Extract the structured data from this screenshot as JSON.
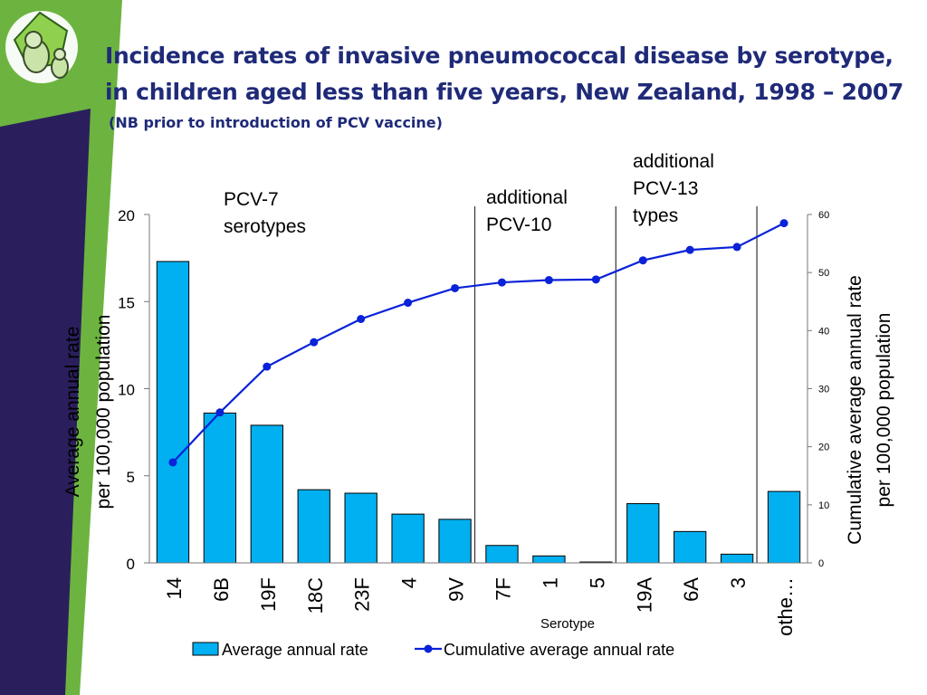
{
  "slide": {
    "title": "Incidence rates of invasive pneumococcal disease by serotype, in children aged less than five years, New Zealand, 1998 – 2007",
    "subtitle": "(NB prior to introduction of PCV vaccine)",
    "colors": {
      "title": "#1f2a78",
      "sidebar": "#2a1f5c",
      "accent": "#6cb43f"
    }
  },
  "annotations": {
    "pcv7": "PCV-7\nserotypes",
    "pcv10": "additional\nPCV-10",
    "pcv13": "additional\nPCV-13\ntypes"
  },
  "chart_data": {
    "type": "bar",
    "categories": [
      "14",
      "6B",
      "19F",
      "18C",
      "23F",
      "4",
      "9V",
      "7F",
      "1",
      "5",
      "19A",
      "6A",
      "3",
      "othe…"
    ],
    "series": [
      {
        "name": "Average annual rate",
        "type": "bar",
        "axis": "left",
        "color": "#00b0f0",
        "values": [
          17.3,
          8.6,
          7.9,
          4.2,
          4.0,
          2.8,
          2.5,
          1.0,
          0.4,
          0.05,
          3.4,
          1.8,
          0.5,
          4.1
        ]
      },
      {
        "name": "Cumulative average annual rate",
        "type": "line",
        "axis": "right",
        "color": "#0a22d8",
        "values": [
          17.3,
          25.9,
          33.8,
          38.0,
          42.0,
          44.8,
          47.3,
          48.3,
          48.7,
          48.8,
          52.1,
          53.9,
          54.4,
          58.5
        ]
      }
    ],
    "xlabel": "Serotype",
    "ylabel": "Average annual rate\nper 100,000 population",
    "y2label": "Cumulative average annual rate\nper 100,000 population",
    "ylim": [
      0,
      20
    ],
    "y2lim": [
      0,
      60
    ],
    "yticks": [
      "0",
      "5",
      "10",
      "15",
      "20"
    ],
    "y2ticks": [
      "0",
      "10",
      "20",
      "30",
      "40",
      "50",
      "60"
    ],
    "dividers_after": [
      "9V",
      "5",
      "3"
    ],
    "grid": false,
    "legend_position": "bottom"
  }
}
